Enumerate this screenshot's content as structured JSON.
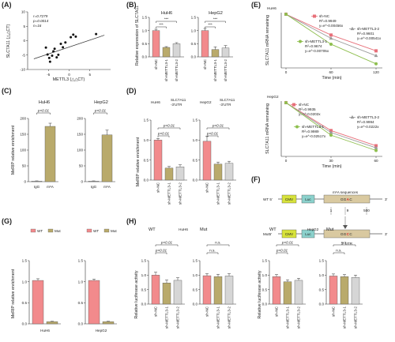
{
  "colors": {
    "pink": "#f28a8c",
    "olive": "#b9aa6b",
    "grey": "#d6d6d6",
    "green": "#b6d47e",
    "cmv": "#d7e23b",
    "luc": "#8bd1cc",
    "gene": "#d9c9a0",
    "line_pink": "#e8707a",
    "line_green": "#8fbf4f",
    "line_grey": "#9a9a9a"
  },
  "chart_data": [
    {
      "panel": "A",
      "type": "scatter",
      "xlabel": "METTL3 (△△CT)",
      "ylabel": "SLC7A11 (△△CT)",
      "xlim": [
        -10,
        10
      ],
      "ylim": [
        -10,
        10
      ],
      "xticks": [
        "-5",
        "0",
        "5"
      ],
      "yticks": [
        "-10",
        "-5",
        "0",
        "5",
        "10"
      ],
      "stats": [
        "r=0.7279",
        "p=0.0014",
        "n=16"
      ],
      "points": [
        [
          -5.6,
          -2.4
        ],
        [
          -5.2,
          -4.8
        ],
        [
          -4.8,
          -6.0
        ],
        [
          -4.6,
          -7.3
        ],
        [
          -4.1,
          -5.2
        ],
        [
          -3.8,
          -3.7
        ],
        [
          -3.5,
          -2.8
        ],
        [
          -3.0,
          -5.8
        ],
        [
          -2.6,
          -4.9
        ],
        [
          -2.0,
          -1.1
        ],
        [
          -1.5,
          -2.3
        ],
        [
          -0.9,
          -0.6
        ],
        [
          0.4,
          1.2
        ],
        [
          1.0,
          2.1
        ],
        [
          1.6,
          1.4
        ],
        [
          6.5,
          2.3
        ]
      ],
      "fit": [
        [
          -8.5,
          -6.3
        ],
        [
          8.5,
          1.9
        ]
      ]
    },
    {
      "panel": "B",
      "type": "bar",
      "ylabel": "Relative expression of SLC7A11",
      "ylim": [
        0,
        1.5
      ],
      "yticks": [
        "0.0",
        "0.5",
        "1.0",
        "1.5"
      ],
      "categories": [
        "sh-NC",
        "sh-METTL3-1",
        "sh-METTL3-2"
      ],
      "groups": [
        {
          "title": "HuH6",
          "values": [
            1.0,
            0.36,
            0.5
          ],
          "errors": [
            0.05,
            0.03,
            0.04
          ],
          "sig": [
            "***",
            "***"
          ]
        },
        {
          "title": "HepG2",
          "values": [
            1.0,
            0.28,
            0.34
          ],
          "errors": [
            0.08,
            0.1,
            0.09
          ],
          "sig": [
            "***",
            "***"
          ]
        }
      ]
    },
    {
      "panel": "E",
      "type": "line",
      "ylabel": "SLC7A11 mRNA remaining",
      "xlabel": "Time (min)",
      "series_names": [
        "sh-NC",
        "sh-METTL3-2",
        "sh-METTL3-1"
      ],
      "plots": [
        {
          "title": "HuH6",
          "xticks": [
            "0",
            "60",
            "120"
          ],
          "xmax": 120,
          "ymin": 0.4,
          "series": [
            {
              "r2": "R²=0.9949",
              "eq": "y=e^-0.00456x",
              "k": 0.00456
            },
            {
              "r2": "R²=0.9601",
              "eq": "y=e^-0.00541x",
              "k": 0.00541
            },
            {
              "r2": "R²=0.9674",
              "eq": "y=e^-0.00705x",
              "k": 0.00705
            }
          ]
        },
        {
          "title": "HepG2",
          "xticks": [
            "0",
            "30",
            "60"
          ],
          "xmax": 60,
          "ymin": 0.15,
          "series": [
            {
              "r2": "R²=0.9935",
              "eq": "y=e^-0.0202x",
              "k": 0.0202
            },
            {
              "r2": "R²=0.9994",
              "eq": "y=e^-0.0222x",
              "k": 0.0222
            },
            {
              "r2": "R²=0.9989",
              "eq": "y=e^-0.02517x",
              "k": 0.02517
            }
          ]
        }
      ]
    },
    {
      "panel": "C",
      "type": "bar",
      "ylabel": "MeRIP relative enrichment",
      "categories": [
        "IgG",
        "m⁶A"
      ],
      "groups": [
        {
          "title": "HuH6",
          "ylim": [
            0,
            200
          ],
          "yticks": [
            "0",
            "50",
            "100",
            "150",
            "200"
          ],
          "values": [
            2,
            175
          ],
          "errors": [
            0.5,
            10
          ],
          "sig": "p<0.01"
        },
        {
          "title": "HepG2",
          "ylim": [
            0,
            200
          ],
          "yticks": [
            "0",
            "50",
            "100",
            "150",
            "200"
          ],
          "values": [
            2,
            148
          ],
          "errors": [
            0.5,
            15
          ],
          "sig": "p<0.01"
        }
      ]
    },
    {
      "panel": "D",
      "type": "bar",
      "ylabel": "MeRIP relative enrichment",
      "ylim": [
        0,
        1.5
      ],
      "yticks": [
        "0.0",
        "0.5",
        "1.0",
        "1.5"
      ],
      "categories": [
        "sh-NC",
        "sh-METTL3-1",
        "sh-METTL3-2"
      ],
      "groups": [
        {
          "title": "HuH6",
          "subtitle": "SLC7A11 -3'UTR",
          "values": [
            1.0,
            0.3,
            0.33
          ],
          "errors": [
            0.04,
            0.04,
            0.05
          ],
          "sig": [
            "p<0.01",
            "p<0.01"
          ]
        },
        {
          "title": "HepG2",
          "subtitle": "SLC7A11 -3'UTR",
          "values": [
            0.97,
            0.4,
            0.42
          ],
          "errors": [
            0.12,
            0.05,
            0.05
          ],
          "sig": [
            "p<0.01",
            "p<0.01"
          ]
        }
      ]
    },
    {
      "panel": "G",
      "type": "bar",
      "ylabel": "MeRIP relative enrichment",
      "ylim": [
        0,
        1.5
      ],
      "yticks": [
        "0.0",
        "0.5",
        "1.0",
        "1.5"
      ],
      "legend": [
        "WT",
        "Mut"
      ],
      "groups": [
        {
          "xlabel": "HuH6",
          "values": [
            1.03,
            0.05
          ],
          "errors": [
            0.04,
            0.01
          ]
        },
        {
          "xlabel": "HepG2",
          "values": [
            1.03,
            0.05
          ],
          "errors": [
            0.03,
            0.01
          ]
        }
      ]
    },
    {
      "panel": "H",
      "type": "bar",
      "ylabel": "Relative luciferase activity",
      "ylim": [
        0,
        1.5
      ],
      "yticks": [
        "0.0",
        "0.5",
        "1.0",
        "1.5"
      ],
      "categories": [
        "sh-NC",
        "sh-METTL3-1",
        "sh-METTL3-2"
      ],
      "cell_titles": [
        "HuH6",
        "HepG2"
      ],
      "groups": [
        {
          "title": "WT",
          "values": [
            1.0,
            0.73,
            0.82
          ],
          "errors": [
            0.1,
            0.1,
            0.09
          ],
          "sig": [
            "p<0.01",
            "p<0.01"
          ]
        },
        {
          "title": "Mut",
          "values": [
            0.98,
            0.95,
            0.97
          ],
          "errors": [
            0.07,
            0.08,
            0.08
          ],
          "sig": [
            "n.s.",
            "n.s."
          ]
        },
        {
          "title": "WT",
          "values": [
            0.95,
            0.77,
            0.82
          ],
          "errors": [
            0.07,
            0.07,
            0.07
          ],
          "sig": [
            "p<0.01",
            "p<0.01"
          ]
        },
        {
          "title": "Mut",
          "values": [
            0.97,
            0.95,
            0.92
          ],
          "errors": [
            0.07,
            0.07,
            0.08
          ],
          "sig": [
            "n.s.",
            "n.s."
          ]
        }
      ]
    }
  ],
  "panel_f": {
    "constructs": [
      {
        "label": "WT 5'",
        "seq": "GGAC",
        "tail": "3'"
      },
      {
        "label": "Mut5'",
        "seq": "GGCC",
        "tail": "3'"
      }
    ],
    "parts": [
      "CMV",
      "Luc"
    ],
    "site_title": "m⁶A sequences",
    "positions": [
      "1",
      "9",
      "500"
    ],
    "utr_label": "3' UTR"
  },
  "panel_letters": [
    "(A)",
    "(B)",
    "(C)",
    "(D)",
    "(E)",
    "(F)",
    "(G)",
    "(H)"
  ]
}
